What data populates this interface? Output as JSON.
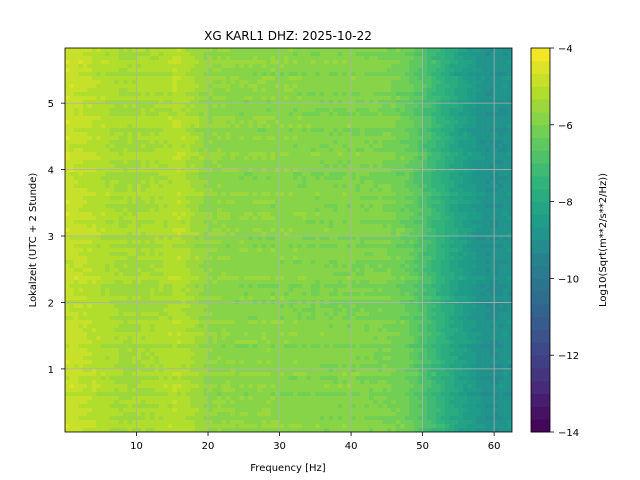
{
  "chart_data": {
    "type": "heatmap",
    "title": "XG KARL1  DHZ: 2025-10-22",
    "xlabel": "Frequency [Hz]",
    "ylabel": "Lokalzeit (UTC + 2 Stunde)",
    "x_ticks": [
      10,
      20,
      30,
      40,
      50,
      60
    ],
    "x_tick_labels": [
      "10",
      "20",
      "30",
      "40",
      "50",
      "60"
    ],
    "xlim": [
      0,
      62.5
    ],
    "y_ticks": [
      1,
      2,
      3,
      4,
      5
    ],
    "y_tick_labels": [
      "1",
      "2",
      "3",
      "4",
      "5"
    ],
    "ylim": [
      5.83,
      0.05
    ],
    "grid": true,
    "colorbar": {
      "label": "Log10(Sqrt(m**2/s**2/Hz))",
      "ticks": [
        -14,
        -12,
        -10,
        -8,
        -6,
        -4
      ],
      "tick_labels": [
        "−14",
        "−12",
        "−10",
        "−8",
        "−6",
        "−4"
      ],
      "range": [
        -14,
        -4
      ],
      "colormap": "viridis",
      "levels": 30
    },
    "spectrum_profile": {
      "frequency_hz": [
        0,
        3,
        8,
        13,
        16,
        20,
        25,
        30,
        35,
        40,
        45,
        48,
        50,
        52,
        55,
        58,
        60,
        62.5
      ],
      "log_amplitude": [
        -4.8,
        -5.0,
        -5.4,
        -5.3,
        -5.1,
        -5.7,
        -5.8,
        -5.8,
        -5.9,
        -5.9,
        -6.0,
        -6.3,
        -6.8,
        -7.4,
        -8.2,
        -8.8,
        -9.0,
        -8.8
      ]
    },
    "bright_bands": [
      {
        "time_h": 2.45,
        "freq_range_hz": [
          20,
          62.5
        ],
        "log_amplitude_boost": 0.8
      },
      {
        "time_h": 2.65,
        "freq_range_hz": [
          20,
          50
        ],
        "log_amplitude_boost": 1.1
      },
      {
        "time_h": 4.85,
        "freq_range_hz": [
          5,
          62.5
        ],
        "log_amplitude_boost": 1.0
      },
      {
        "time_h": 4.35,
        "freq_range_hz": [
          10,
          48
        ],
        "log_amplitude_boost": 0.4
      },
      {
        "time_h": 4.6,
        "freq_range_hz": [
          15,
          48
        ],
        "log_amplitude_boost": 0.4
      },
      {
        "time_h": 5.2,
        "freq_range_hz": [
          5,
          45
        ],
        "log_amplitude_boost": 0.5
      },
      {
        "time_h": 3.3,
        "freq_range_hz": [
          10,
          45
        ],
        "log_amplitude_boost": 0.3
      },
      {
        "time_h": 4.05,
        "freq_range_hz": [
          10,
          45
        ],
        "log_amplitude_boost": 0.3
      }
    ]
  }
}
